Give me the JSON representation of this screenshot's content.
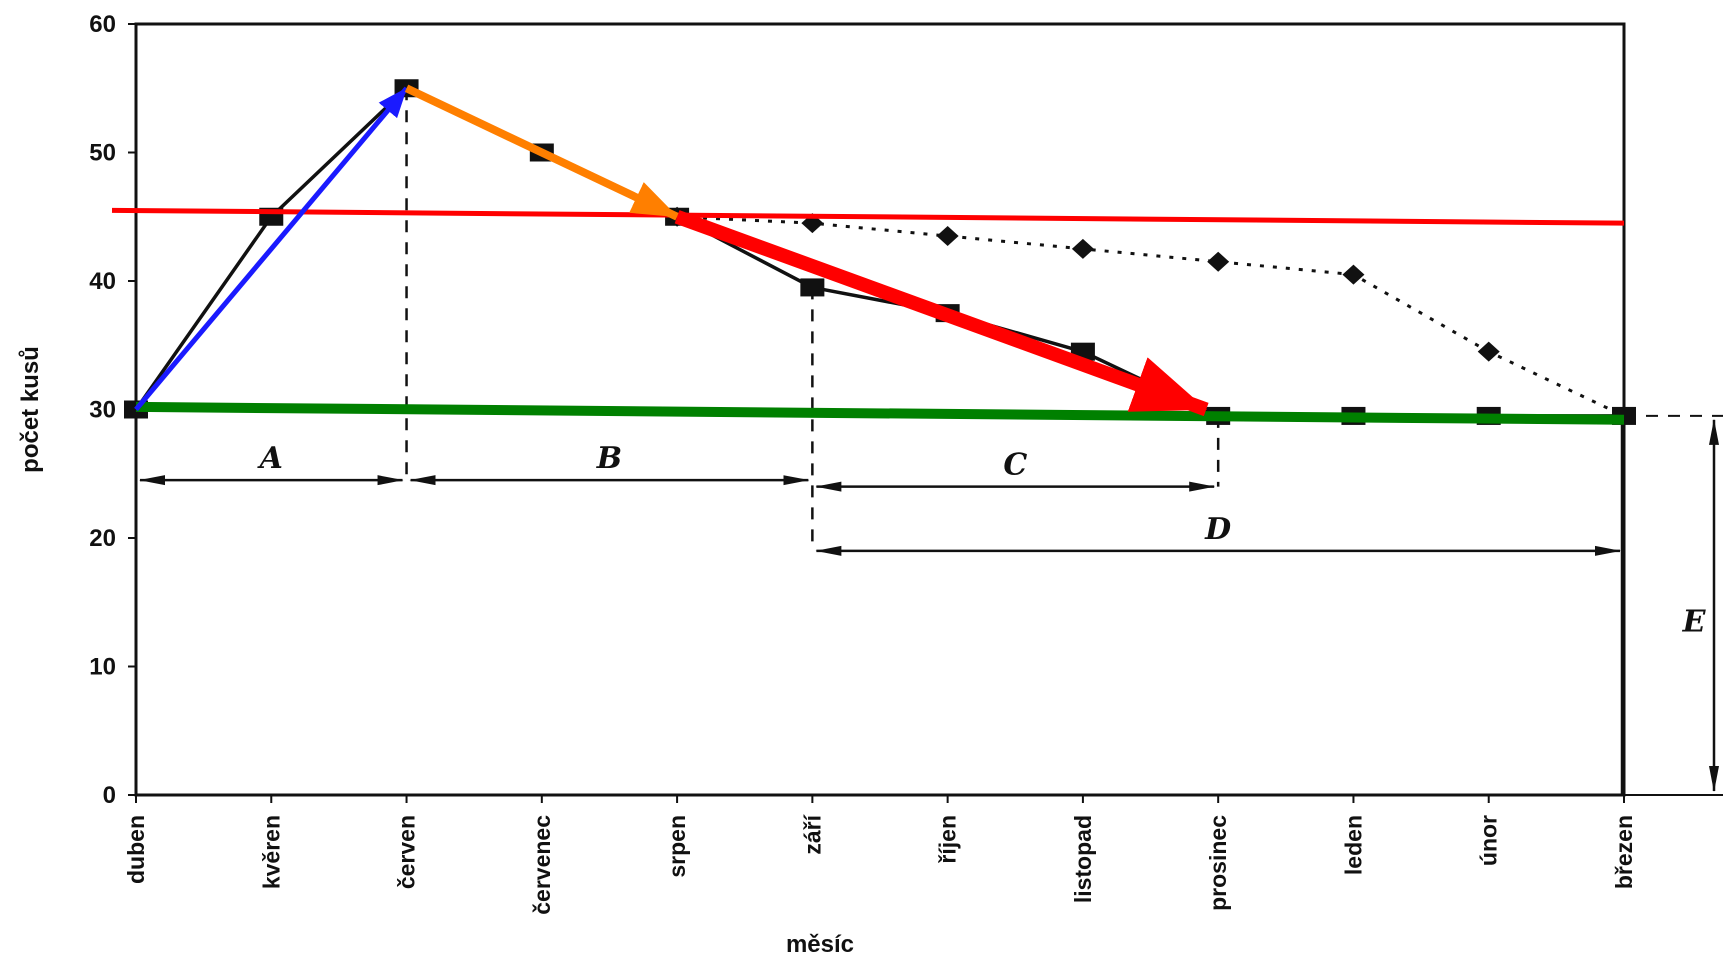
{
  "chart_data": {
    "type": "line",
    "xlabel": "měsíc",
    "ylabel": "počet kusů",
    "ylim": [
      0,
      60
    ],
    "yticks": [
      0,
      10,
      20,
      30,
      40,
      50,
      60
    ],
    "categories": [
      "duben",
      "kvěren",
      "červen",
      "červenec",
      "srpen",
      "září",
      "říjen",
      "listopad",
      "prosinec",
      "leden",
      "únor",
      "březen"
    ],
    "grid": false,
    "legend": "none",
    "series": [
      {
        "style": "solid",
        "marker": "square",
        "color": "#111111",
        "values": [
          30,
          45,
          55,
          50,
          45,
          39.5,
          37.5,
          34.5,
          29.5,
          29.5,
          29.5,
          29.5
        ]
      },
      {
        "style": "dotted",
        "marker": "diamond",
        "color": "#111111",
        "values": [
          null,
          null,
          null,
          null,
          45,
          44.5,
          43.5,
          42.5,
          41.5,
          40.5,
          34.5,
          29.5
        ]
      }
    ],
    "spans": [
      {
        "label": "A",
        "from": "duben",
        "to": "červen",
        "y": 24.5
      },
      {
        "label": "B",
        "from": "červen",
        "to": "září",
        "y": 24.5
      },
      {
        "label": "C",
        "from": "září",
        "to": "prosinec",
        "y": 24
      },
      {
        "label": "D",
        "from": "září",
        "to": "březen",
        "y": 19
      },
      {
        "label": "E",
        "from_y": 0,
        "to_y": 29.5
      }
    ],
    "overlay_arrows": [
      {
        "color": "#1a1aff",
        "from": [
          "duben",
          30
        ],
        "to": [
          "červen",
          55
        ]
      },
      {
        "color": "#ff7f00",
        "from": [
          "červen",
          55
        ],
        "to": [
          "srpen",
          45
        ]
      },
      {
        "color": "#ff0000",
        "from": [
          "srpen",
          45
        ],
        "to": [
          "prosinec",
          30
        ]
      }
    ],
    "overlay_lines": [
      {
        "color": "#ff0000",
        "y_start": 45.5,
        "y_end": 44.5
      },
      {
        "color": "#008000",
        "y_start": 30.2,
        "y_end": 29.2
      }
    ]
  }
}
